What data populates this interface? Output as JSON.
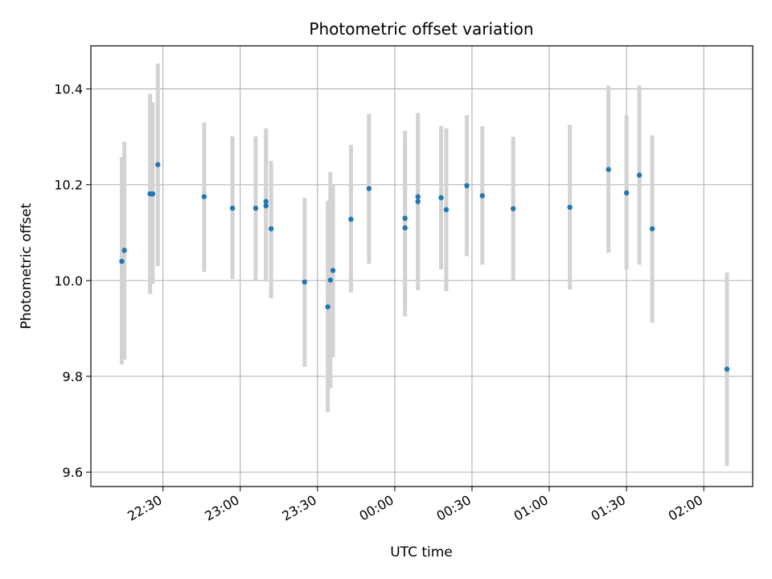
{
  "chart_data": {
    "type": "scatter",
    "title": "Photometric offset variation",
    "xlabel": "UTC time",
    "ylabel": "Photometric offset",
    "x_ticks": [
      "22:30",
      "23:00",
      "23:30",
      "00:00",
      "00:30",
      "01:00",
      "01:30",
      "02:00"
    ],
    "y_ticks": [
      "9.6",
      "9.8",
      "10.0",
      "10.2",
      "10.4"
    ],
    "ylim": [
      9.57,
      10.49
    ],
    "xlim": [
      "22:02",
      "02:19"
    ],
    "grid": true,
    "marker_color": "#1f77b4",
    "errorbar_color": "#d3d3d3",
    "points": [
      {
        "x": "22:14",
        "y": 10.04,
        "err_low": 9.825,
        "err_high": 10.258
      },
      {
        "x": "22:15",
        "y": 10.063,
        "err_low": 9.835,
        "err_high": 10.29
      },
      {
        "x": "22:25",
        "y": 10.181,
        "err_low": 9.972,
        "err_high": 10.39
      },
      {
        "x": "22:26",
        "y": 10.181,
        "err_low": 9.993,
        "err_high": 10.372
      },
      {
        "x": "22:28",
        "y": 10.242,
        "err_low": 10.03,
        "err_high": 10.453
      },
      {
        "x": "22:46",
        "y": 10.175,
        "err_low": 10.018,
        "err_high": 10.33
      },
      {
        "x": "22:57",
        "y": 10.151,
        "err_low": 10.003,
        "err_high": 10.301
      },
      {
        "x": "23:06",
        "y": 10.151,
        "err_low": 10.001,
        "err_high": 10.301
      },
      {
        "x": "23:10",
        "y": 10.165,
        "err_low": 10.003,
        "err_high": 10.318
      },
      {
        "x": "23:10",
        "y": 10.156,
        "err_low": 9.998,
        "err_high": 10.314
      },
      {
        "x": "23:12",
        "y": 10.108,
        "err_low": 9.963,
        "err_high": 10.25
      },
      {
        "x": "23:25",
        "y": 9.997,
        "err_low": 9.82,
        "err_high": 10.173
      },
      {
        "x": "23:34",
        "y": 9.945,
        "err_low": 9.725,
        "err_high": 10.167
      },
      {
        "x": "23:35",
        "y": 10.001,
        "err_low": 9.775,
        "err_high": 10.227
      },
      {
        "x": "23:36",
        "y": 10.021,
        "err_low": 9.84,
        "err_high": 10.2
      },
      {
        "x": "23:43",
        "y": 10.128,
        "err_low": 9.975,
        "err_high": 10.283
      },
      {
        "x": "23:50",
        "y": 10.192,
        "err_low": 10.035,
        "err_high": 10.348
      },
      {
        "x": "00:04",
        "y": 10.11,
        "err_low": 9.925,
        "err_high": 10.293
      },
      {
        "x": "00:04",
        "y": 10.13,
        "err_low": 9.946,
        "err_high": 10.313
      },
      {
        "x": "00:09",
        "y": 10.165,
        "err_low": 9.98,
        "err_high": 10.35
      },
      {
        "x": "00:09",
        "y": 10.175,
        "err_low": 10.0,
        "err_high": 10.348
      },
      {
        "x": "00:18",
        "y": 10.173,
        "err_low": 10.023,
        "err_high": 10.323
      },
      {
        "x": "00:20",
        "y": 10.148,
        "err_low": 9.978,
        "err_high": 10.318
      },
      {
        "x": "00:28",
        "y": 10.198,
        "err_low": 10.051,
        "err_high": 10.345
      },
      {
        "x": "00:34",
        "y": 10.177,
        "err_low": 10.033,
        "err_high": 10.322
      },
      {
        "x": "00:46",
        "y": 10.15,
        "err_low": 10.0,
        "err_high": 10.3
      },
      {
        "x": "01:08",
        "y": 10.153,
        "err_low": 9.981,
        "err_high": 10.325
      },
      {
        "x": "01:23",
        "y": 10.232,
        "err_low": 10.058,
        "err_high": 10.407
      },
      {
        "x": "01:30",
        "y": 10.183,
        "err_low": 10.023,
        "err_high": 10.345
      },
      {
        "x": "01:35",
        "y": 10.22,
        "err_low": 10.033,
        "err_high": 10.407
      },
      {
        "x": "01:40",
        "y": 10.108,
        "err_low": 9.912,
        "err_high": 10.303
      },
      {
        "x": "02:09",
        "y": 9.815,
        "err_low": 9.613,
        "err_high": 10.017
      }
    ]
  }
}
